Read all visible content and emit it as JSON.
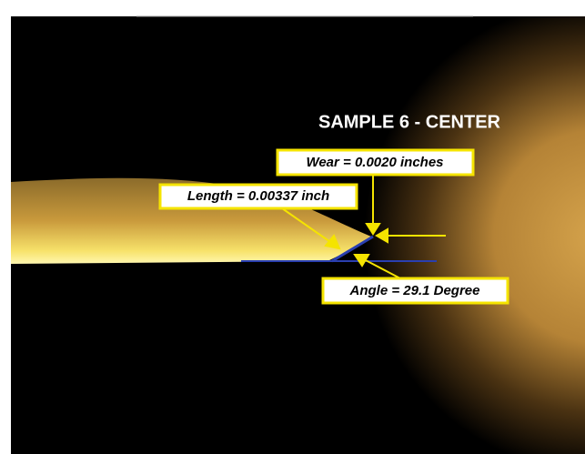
{
  "image": {
    "title": "SAMPLE 6 - CENTER",
    "annotations": {
      "wear": "Wear = 0.0020 inches",
      "length": "Length = 0.00337 inch",
      "angle": "Angle = 29.1 Degree"
    }
  }
}
